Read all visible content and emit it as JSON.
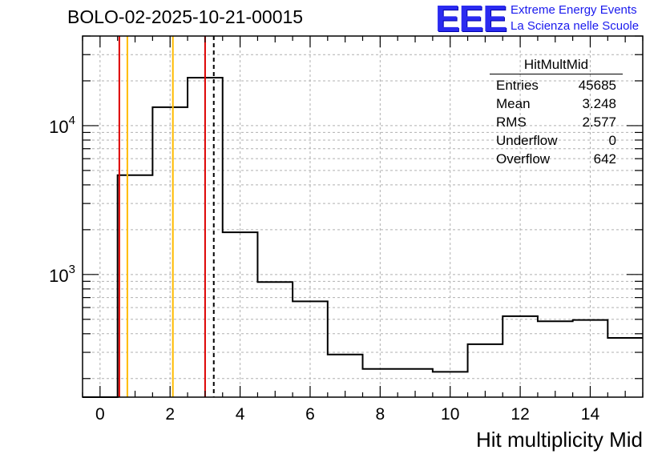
{
  "title": "BOLO-02-2025-10-21-00015",
  "logo": {
    "text": "EEE",
    "line1": "Extreme Energy Events",
    "line2": "La Scienza nelle Scuole",
    "color": "#2a2af0"
  },
  "stats": {
    "title": "HitMultMid",
    "rows": [
      {
        "label": "Entries",
        "value": "45685"
      },
      {
        "label": "Mean",
        "value": "3.248"
      },
      {
        "label": "RMS",
        "value": "2.577"
      },
      {
        "label": "Underflow",
        "value": "0"
      },
      {
        "label": "Overflow",
        "value": "642"
      }
    ]
  },
  "chart_data": {
    "type": "histogram",
    "xlabel": "Hit multiplicity Mid",
    "xlim": [
      -0.5,
      15.5
    ],
    "ylim": [
      150,
      40000
    ],
    "ylog": true,
    "grid": true,
    "x_ticks": [
      "0",
      "2",
      "4",
      "6",
      "8",
      "10",
      "12",
      "14"
    ],
    "x_tick_values": [
      0,
      2,
      4,
      6,
      8,
      10,
      12,
      14
    ],
    "y_ticks": [
      {
        "base": "10",
        "exp": "3",
        "value": 1000
      },
      {
        "base": "10",
        "exp": "4",
        "value": 10000
      }
    ],
    "bins": [
      {
        "x": 0,
        "value": 0
      },
      {
        "x": 1,
        "value": 4650
      },
      {
        "x": 2,
        "value": 13300
      },
      {
        "x": 3,
        "value": 21000
      },
      {
        "x": 4,
        "value": 1920
      },
      {
        "x": 5,
        "value": 890
      },
      {
        "x": 6,
        "value": 660
      },
      {
        "x": 7,
        "value": 290
      },
      {
        "x": 8,
        "value": 232
      },
      {
        "x": 9,
        "value": 232
      },
      {
        "x": 10,
        "value": 222
      },
      {
        "x": 11,
        "value": 340
      },
      {
        "x": 12,
        "value": 525
      },
      {
        "x": 13,
        "value": 485
      },
      {
        "x": 14,
        "value": 495
      },
      {
        "x": 15,
        "value": 375
      }
    ],
    "vertical_lines": [
      {
        "x": 0.55,
        "color": "#dd0000",
        "style": "solid"
      },
      {
        "x": 0.78,
        "color": "#ffbb00",
        "style": "solid"
      },
      {
        "x": 2.08,
        "color": "#ffbb00",
        "style": "solid"
      },
      {
        "x": 3.0,
        "color": "#dd0000",
        "style": "solid"
      },
      {
        "x": 3.248,
        "color": "#000000",
        "style": "dashed"
      }
    ]
  }
}
